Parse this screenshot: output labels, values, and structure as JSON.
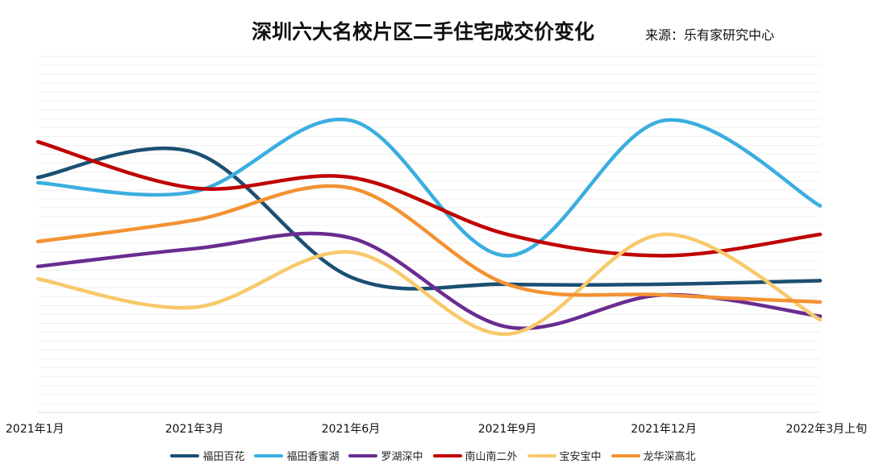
{
  "chart_data": {
    "type": "line",
    "title": "深圳六大名校片区二手住宅成交价变化",
    "source": "来源：乐有家研究中心",
    "categories": [
      "2021年1月",
      "2021年3月",
      "2021年6月",
      "2021年9月",
      "2021年12月",
      "2022年3月上旬"
    ],
    "xlabel": "",
    "ylabel": "",
    "ylim": [
      0,
      100
    ],
    "grid": true,
    "legend_position": "bottom",
    "series": [
      {
        "name": "福田百花",
        "color": "#1b4f72",
        "values": [
          66,
          73,
          38,
          36,
          36,
          37
        ]
      },
      {
        "name": "福田香蜜湖",
        "color": "#3aaee0",
        "values": [
          64.5,
          62,
          82,
          44,
          82,
          58
        ]
      },
      {
        "name": "罗湖深中",
        "color": "#6a2c91",
        "values": [
          41,
          46,
          49,
          24,
          33,
          27
        ]
      },
      {
        "name": "南山南二外",
        "color": "#c00000",
        "values": [
          76,
          63,
          66,
          50,
          44,
          50
        ]
      },
      {
        "name": "宝安宝中",
        "color": "#f7c96a",
        "values": [
          37.5,
          29.5,
          45,
          22,
          50,
          26
        ]
      },
      {
        "name": "龙华深高北",
        "color": "#f39233",
        "values": [
          48,
          54,
          63,
          36,
          33,
          31
        ]
      }
    ]
  }
}
